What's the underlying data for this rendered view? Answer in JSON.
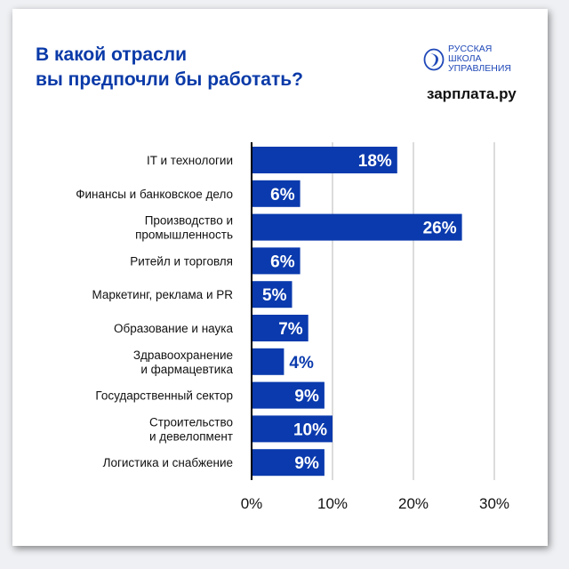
{
  "title_lines": [
    "В какой отрасли",
    "вы предпочли бы работать?"
  ],
  "logos": {
    "rsu": [
      "РУССКАЯ",
      "ШКОЛА",
      "УПРАВЛЕНИЯ"
    ],
    "zarplata": "зарплата.ру"
  },
  "colors": {
    "bar": "#0a3aad",
    "title": "#0a3aa8",
    "grid": "#d0d0d0",
    "axis": "#000000"
  },
  "chart_data": {
    "type": "bar",
    "orientation": "horizontal",
    "title": "В какой отрасли вы предпочли бы работать?",
    "categories": [
      [
        "IT и технологии"
      ],
      [
        "Финансы и банковское дело"
      ],
      [
        "Производство и",
        "промышленность"
      ],
      [
        "Ритейл и торговля"
      ],
      [
        "Маркетинг, реклама и PR"
      ],
      [
        "Образование и наука"
      ],
      [
        "Здравоохранение",
        "и фармацевтика"
      ],
      [
        "Государственный сектор"
      ],
      [
        "Строительство",
        "и девелопмент"
      ],
      [
        "Логистика и снабжение"
      ]
    ],
    "values": [
      18,
      6,
      26,
      6,
      5,
      7,
      4,
      9,
      10,
      9
    ],
    "data_labels": [
      "18%",
      "6%",
      "26%",
      "6%",
      "5%",
      "7%",
      "4%",
      "9%",
      "10%",
      "9%"
    ],
    "xlim": [
      0,
      30
    ],
    "xticks": [
      0,
      10,
      20,
      30
    ],
    "xtick_labels": [
      "0%",
      "10%",
      "20%",
      "30%"
    ],
    "grid": true,
    "legend": "none"
  }
}
